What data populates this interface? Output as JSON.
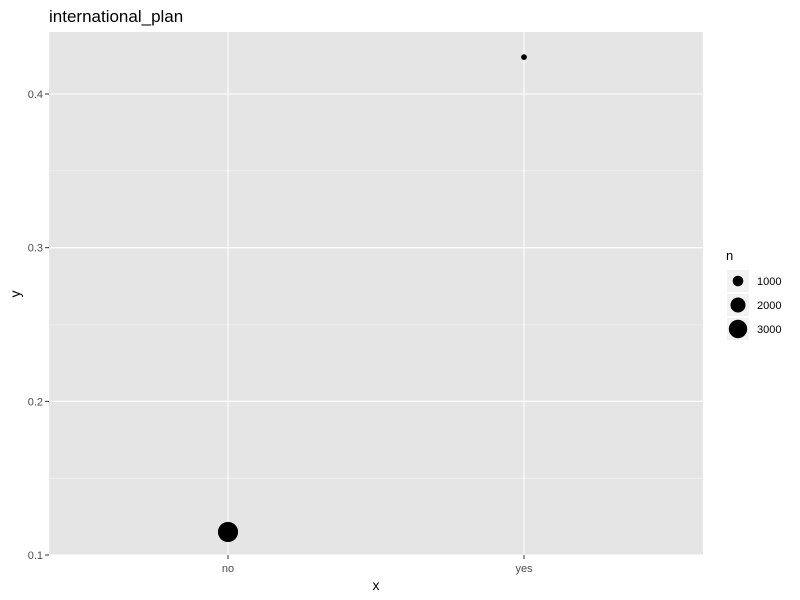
{
  "chart_data": {
    "type": "scatter",
    "title": "international_plan",
    "xlabel": "x",
    "ylabel": "y",
    "categories": [
      "no",
      "yes"
    ],
    "points": [
      {
        "x": "no",
        "y": 0.115,
        "n": 3600
      },
      {
        "x": "yes",
        "y": 0.424,
        "n": 300
      }
    ],
    "ylim": [
      0.1,
      0.45
    ],
    "yticks": [
      0.1,
      0.2,
      0.3,
      0.4
    ],
    "ytick_labels": [
      "0.1",
      "0.2",
      "0.3",
      "0.4"
    ],
    "grid": true,
    "legend": {
      "title": "n",
      "placement": "right",
      "entries": [
        {
          "label": "1000",
          "n": 1000
        },
        {
          "label": "2000",
          "n": 2000
        },
        {
          "label": "3000",
          "n": 3000
        }
      ]
    },
    "colors": {
      "panel_background": "#e5e5e5",
      "grid_major": "#ffffff",
      "grid_minor": "#f2f2f2",
      "point": "#000000",
      "tick_label": "#4d4d4d",
      "axis_text": "#000000",
      "legend_key_background": "#f2f2f2"
    }
  }
}
